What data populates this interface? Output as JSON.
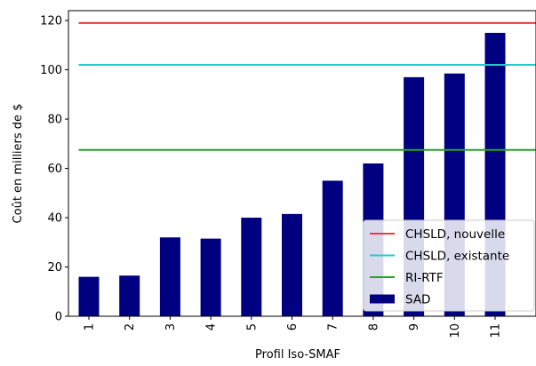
{
  "chart_data": {
    "type": "bar",
    "xlabel": "Profil Iso-SMAF",
    "ylabel": "Coût en milliers de $",
    "categories": [
      "1",
      "2",
      "3",
      "4",
      "5",
      "6",
      "7",
      "8",
      "9",
      "10",
      "11"
    ],
    "ylim": [
      0,
      124
    ],
    "yticks": [
      0,
      20,
      40,
      60,
      80,
      100,
      120
    ],
    "series": [
      {
        "name": "SAD",
        "kind": "bar",
        "color": "#000080",
        "values": [
          16,
          16.5,
          32,
          31.5,
          40,
          41.5,
          55,
          62,
          97,
          98.5,
          115
        ]
      }
    ],
    "reference_lines": [
      {
        "name": "CHSLD, nouvelle",
        "value": 119,
        "color": "#ef3b3b"
      },
      {
        "name": "CHSLD, existante",
        "value": 102,
        "color": "#22cccc"
      },
      {
        "name": "RI-RTF",
        "value": 67.5,
        "color": "#2ca02c"
      }
    ],
    "legend_position": "lower-right",
    "grid": false
  }
}
